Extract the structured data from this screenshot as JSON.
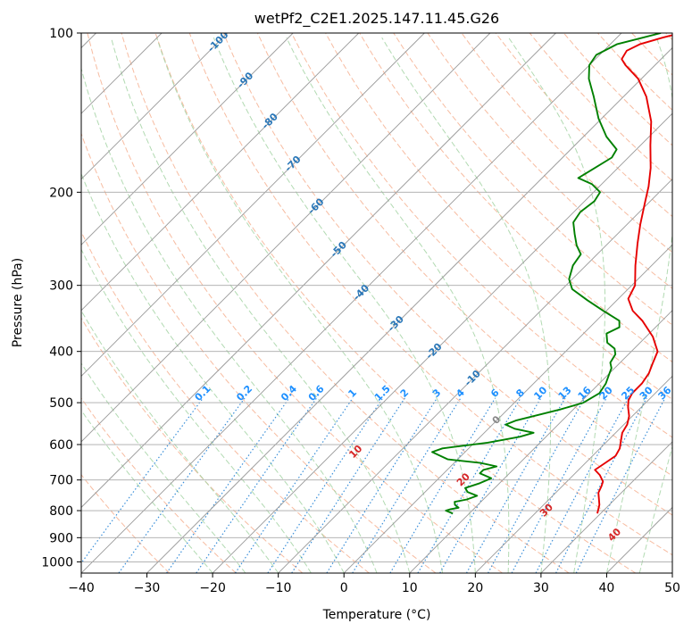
{
  "chart_data": {
    "type": "line",
    "title": "wetPf2_C2E1.2025.147.11.45.G26",
    "xlabel": "Temperature (°C)",
    "ylabel": "Pressure (hPa)",
    "xlim": [
      -40,
      50
    ],
    "ylim": [
      1050,
      100
    ],
    "y_scale": "log",
    "grid": true,
    "skew_deg": 45,
    "x_ticks": [
      -40,
      -30,
      -20,
      -10,
      0,
      10,
      20,
      30,
      40,
      50
    ],
    "x_tick_labels": [
      "−40",
      "−30",
      "−20",
      "−10",
      "0",
      "10",
      "20",
      "30",
      "40",
      "50"
    ],
    "y_ticks": [
      1000,
      900,
      800,
      700,
      600,
      500,
      400,
      300,
      200,
      100
    ],
    "y_tick_labels": [
      "1000",
      "900",
      "800",
      "700",
      "600",
      "500",
      "400",
      "300",
      "200",
      "100"
    ],
    "colors": {
      "temperature": "#e60000",
      "dewpoint": "#008000",
      "dry_adiabat": "#f4a582",
      "moist_adiabat": "#9fd19f",
      "mixing_ratio": "#3a8fd9",
      "isotherm": "#999999",
      "isobar": "#aaaaaa",
      "isotherm_label": "#2a77b8",
      "mixing_ratio_label": "#1e90ff",
      "moist_label": "#d62728"
    },
    "series": [
      {
        "key": "temperature",
        "points": [
          [
            29.5,
            810
          ],
          [
            28.5,
            780
          ],
          [
            26.5,
            740
          ],
          [
            26,
            720
          ],
          [
            25.5,
            705
          ],
          [
            24,
            685
          ],
          [
            22.5,
            670
          ],
          [
            23,
            650
          ],
          [
            23.5,
            630
          ],
          [
            23,
            610
          ],
          [
            22,
            590
          ],
          [
            21,
            570
          ],
          [
            20.5,
            550
          ],
          [
            19.5,
            530
          ],
          [
            18,
            510
          ],
          [
            17,
            495
          ],
          [
            16.5,
            480
          ],
          [
            16.5,
            460
          ],
          [
            16,
            440
          ],
          [
            15,
            420
          ],
          [
            14,
            400
          ],
          [
            11,
            375
          ],
          [
            7,
            350
          ],
          [
            4,
            335
          ],
          [
            1.5,
            318
          ],
          [
            0.5,
            300
          ],
          [
            -2.5,
            275
          ],
          [
            -5.5,
            250
          ],
          [
            -8,
            230
          ],
          [
            -10.5,
            210
          ],
          [
            -12.5,
            195
          ],
          [
            -15,
            180
          ],
          [
            -18.5,
            163
          ],
          [
            -22,
            147
          ],
          [
            -26.5,
            132
          ],
          [
            -30.5,
            122
          ],
          [
            -34.5,
            115
          ],
          [
            -36,
            112
          ],
          [
            -36.5,
            108
          ],
          [
            -35.5,
            105
          ],
          [
            -33,
            102
          ],
          [
            -31,
            100
          ]
        ]
      },
      {
        "key": "dewpoint",
        "points": [
          [
            7.5,
            810
          ],
          [
            6,
            800
          ],
          [
            6.5,
            795
          ],
          [
            7.5,
            790
          ],
          [
            6.5,
            780
          ],
          [
            6,
            770
          ],
          [
            7.5,
            762
          ],
          [
            8.5,
            750
          ],
          [
            6.5,
            738
          ],
          [
            5.5,
            725
          ],
          [
            7,
            710
          ],
          [
            8,
            695
          ],
          [
            5.5,
            680
          ],
          [
            5.5,
            670
          ],
          [
            7,
            660
          ],
          [
            4,
            650
          ],
          [
            -1.5,
            640
          ],
          [
            -5,
            620
          ],
          [
            -4,
            610
          ],
          [
            2,
            595
          ],
          [
            6,
            580
          ],
          [
            7.5,
            570
          ],
          [
            4,
            560
          ],
          [
            2,
            550
          ],
          [
            3,
            540
          ],
          [
            5,
            530
          ],
          [
            8,
            515
          ],
          [
            10.5,
            500
          ],
          [
            11.5,
            480
          ],
          [
            11,
            460
          ],
          [
            10,
            440
          ],
          [
            9.5,
            430
          ],
          [
            8.5,
            420
          ],
          [
            8,
            405
          ],
          [
            7,
            395
          ],
          [
            5,
            385
          ],
          [
            3.5,
            370
          ],
          [
            4.5,
            360
          ],
          [
            3.5,
            350
          ],
          [
            -0.5,
            335
          ],
          [
            -4.5,
            320
          ],
          [
            -8.5,
            305
          ],
          [
            -10.5,
            292
          ],
          [
            -12,
            275
          ],
          [
            -12.5,
            262
          ],
          [
            -14.5,
            252
          ],
          [
            -16.5,
            240
          ],
          [
            -18.5,
            228
          ],
          [
            -19,
            218
          ],
          [
            -18.5,
            208
          ],
          [
            -19,
            200
          ],
          [
            -21.5,
            193
          ],
          [
            -24.5,
            188
          ],
          [
            -23.5,
            180
          ],
          [
            -22.5,
            172
          ],
          [
            -23,
            166
          ],
          [
            -26.5,
            157
          ],
          [
            -30.5,
            145
          ],
          [
            -34.5,
            132
          ],
          [
            -38,
            122
          ],
          [
            -40,
            115
          ],
          [
            -40.5,
            110
          ],
          [
            -39,
            105
          ],
          [
            -36,
            102
          ],
          [
            -34,
            100
          ]
        ]
      }
    ],
    "isotherm_labels": [
      {
        "t": -100,
        "text": "-100",
        "p": 104
      },
      {
        "t": -90,
        "text": "-90",
        "p": 123
      },
      {
        "t": -80,
        "text": "-80",
        "p": 147
      },
      {
        "t": -70,
        "text": "-70",
        "p": 177
      },
      {
        "t": -60,
        "text": "-60",
        "p": 213
      },
      {
        "t": -50,
        "text": "-50",
        "p": 257
      },
      {
        "t": -40,
        "text": "-40",
        "p": 310
      },
      {
        "t": -30,
        "text": "-30",
        "p": 355
      },
      {
        "t": -20,
        "text": "-20",
        "p": 400
      },
      {
        "t": -10,
        "text": "-10",
        "p": 450
      }
    ],
    "zero_label": {
      "text": "0",
      "t": 0,
      "p": 540
    },
    "mixing_ratio_labels": {
      "p": 490,
      "values": [
        0.1,
        0.2,
        0.4,
        0.6,
        1,
        1.5,
        2,
        3,
        4,
        6,
        8,
        10,
        13,
        16,
        20,
        25,
        30,
        36
      ],
      "texts": [
        "0.1",
        "0.2",
        "0.4",
        "0.6",
        "1",
        "1.5",
        "2",
        "3",
        "4",
        "6",
        "8",
        "10",
        "13",
        "16",
        "20",
        "25",
        "30",
        "36"
      ]
    },
    "moist_labels": [
      {
        "text": "10",
        "value": 10,
        "p": 620
      },
      {
        "text": "20",
        "value": 20,
        "p": 700
      },
      {
        "text": "30",
        "value": 30,
        "p": 800
      },
      {
        "text": "40",
        "value": 40,
        "p": 890
      }
    ]
  }
}
